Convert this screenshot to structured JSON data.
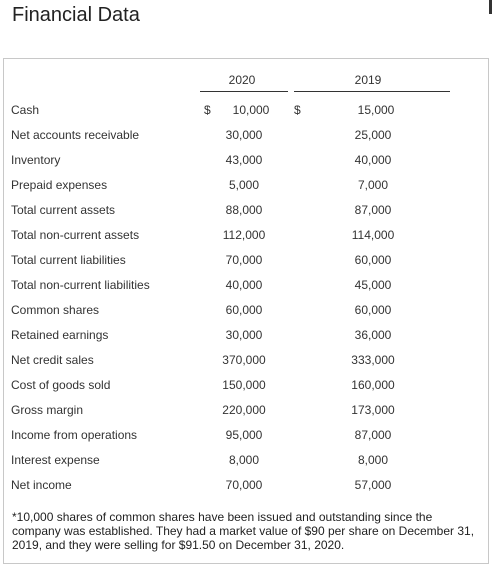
{
  "page": {
    "title": "Financial Data"
  },
  "table": {
    "columns": [
      "2020",
      "2019"
    ],
    "currency_symbol": "$",
    "rows": [
      {
        "label": "Cash",
        "v2020": "10,000",
        "v2019": "15,000"
      },
      {
        "label": "Net accounts receivable",
        "v2020": "30,000",
        "v2019": "25,000"
      },
      {
        "label": "Inventory",
        "v2020": "43,000",
        "v2019": "40,000"
      },
      {
        "label": "Prepaid expenses",
        "v2020": "5,000",
        "v2019": "7,000"
      },
      {
        "label": "Total current assets",
        "v2020": "88,000",
        "v2019": "87,000"
      },
      {
        "label": "Total non-current assets",
        "v2020": "112,000",
        "v2019": "114,000"
      },
      {
        "label": "Total current liabilities",
        "v2020": "70,000",
        "v2019": "60,000"
      },
      {
        "label": "Total non-current liabilities",
        "v2020": "40,000",
        "v2019": "45,000"
      },
      {
        "label": "Common shares",
        "v2020": "60,000",
        "v2019": "60,000"
      },
      {
        "label": "Retained earnings",
        "v2020": "30,000",
        "v2019": "36,000"
      },
      {
        "label": "Net credit sales",
        "v2020": "370,000",
        "v2019": "333,000"
      },
      {
        "label": "Cost of goods sold",
        "v2020": "150,000",
        "v2019": "160,000"
      },
      {
        "label": "Gross margin",
        "v2020": "220,000",
        "v2019": "173,000"
      },
      {
        "label": "Income from operations",
        "v2020": "95,000",
        "v2019": "87,000"
      },
      {
        "label": "Interest expense",
        "v2020": "8,000",
        "v2019": "8,000"
      },
      {
        "label": "Net income",
        "v2020": "70,000",
        "v2019": "57,000"
      }
    ],
    "footnote": "*10,000 shares of common shares have been issued and outstanding since the company was established. They had a market value of $90 per share on December 31, 2019, and they were selling for $91.50 on December 31, 2020."
  }
}
